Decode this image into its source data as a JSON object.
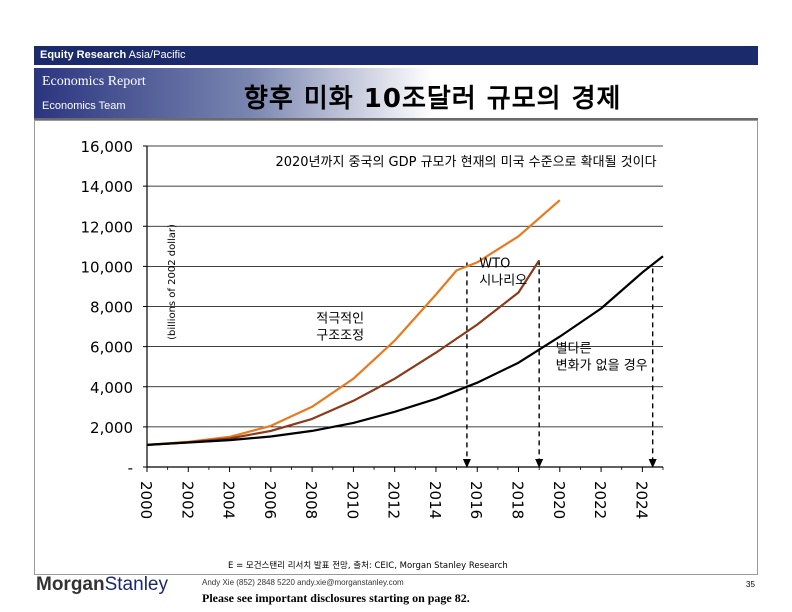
{
  "header": {
    "bar_bold": "Equity Research",
    "bar_region": "Asia/Pacific",
    "report": "Economics Report",
    "team": "Economics Team",
    "title": "향후 미화 10조달러 규모의 경제"
  },
  "chart_data": {
    "type": "line",
    "title": "2020년까지 중국의 GDP 규모가 현재의 미국 수준으로 확대될 것이다",
    "ylabel": "(billions of 2002 dollar)",
    "xlabel": "",
    "ylim": [
      0,
      16000
    ],
    "yticks": [
      0,
      2000,
      4000,
      6000,
      8000,
      10000,
      12000,
      14000,
      16000
    ],
    "ytick_labels": [
      "-",
      "2,000",
      "4,000",
      "6,000",
      "8,000",
      "10,000",
      "12,000",
      "14,000",
      "16,000"
    ],
    "xlim": [
      2000,
      2025
    ],
    "xticks": [
      2000,
      2002,
      2004,
      2006,
      2008,
      2010,
      2012,
      2014,
      2016,
      2018,
      2020,
      2022,
      2024
    ],
    "grid": "horizontal",
    "series": [
      {
        "color": "#e87a1e",
        "x": [
          2000,
          2002,
          2004,
          2006,
          2008,
          2010,
          2012,
          2014,
          2015,
          2016,
          2018,
          2020
        ],
        "values": [
          1100,
          1250,
          1500,
          2050,
          3000,
          4400,
          6300,
          8600,
          9800,
          10200,
          11500,
          13300
        ]
      },
      {
        "color": "#8b3a1a",
        "x": [
          2000,
          2002,
          2004,
          2006,
          2008,
          2010,
          2012,
          2014,
          2016,
          2018,
          2019
        ],
        "values": [
          1100,
          1230,
          1420,
          1800,
          2400,
          3300,
          4400,
          5700,
          7100,
          8700,
          10300
        ]
      },
      {
        "color": "#000000",
        "x": [
          2000,
          2002,
          2004,
          2006,
          2008,
          2010,
          2012,
          2014,
          2016,
          2018,
          2020,
          2022,
          2024,
          2025
        ],
        "values": [
          1100,
          1220,
          1340,
          1520,
          1800,
          2200,
          2750,
          3400,
          4200,
          5200,
          6500,
          7900,
          9700,
          10500
        ]
      }
    ],
    "markers": [
      {
        "x": 2015.5,
        "from": 10200,
        "to": 0
      },
      {
        "x": 2019.0,
        "from": 10300,
        "to": 0
      },
      {
        "x": 2024.5,
        "from": 9900,
        "to": 0
      }
    ],
    "annotations": [
      {
        "text_lines": [
          "WTO",
          "시나리오"
        ],
        "x": 2016.1,
        "y": 9950
      },
      {
        "text_lines": [
          "적극적인",
          "구조조정"
        ],
        "x": 2008.2,
        "y": 7200
      },
      {
        "text_lines": [
          "별다른",
          "변화가 없을 경우"
        ],
        "x": 2019.8,
        "y": 5700
      }
    ],
    "source": "E = 모건스탠리 리서치 발표 전망, 출처: CEIC, Morgan Stanley Research"
  },
  "footer": {
    "logo_a": "Morgan",
    "logo_b": "Stanley",
    "contact": "Andy Xie (852) 2848 5220 andy.xie@morganstanley.com",
    "disclosure": "Please see important disclosures starting on page 82.",
    "page": "35"
  }
}
